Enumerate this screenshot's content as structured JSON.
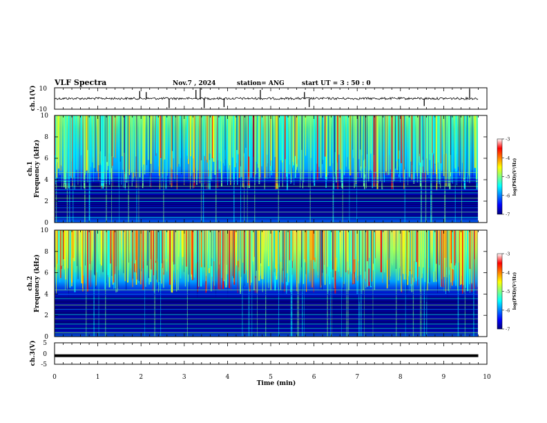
{
  "header": {
    "title": "VLF Spectra",
    "date": "Nov.7  , 2024",
    "station": "station= ANG",
    "start": "start  UT  =   3  : 50 : 0"
  },
  "chart_data": [
    {
      "type": "line",
      "name": "ch1-waveform",
      "ylabel": "ch.1(V)",
      "ylim": [
        -10,
        10
      ],
      "yticks": [
        "10",
        "-10"
      ],
      "baseline_value": 0,
      "spikes": [
        {
          "x": 1.97,
          "y": 7
        },
        {
          "x": 2.12,
          "y": 6
        },
        {
          "x": 2.65,
          "y": -9
        },
        {
          "x": 3.27,
          "y": 8
        },
        {
          "x": 3.37,
          "y": 10
        },
        {
          "x": 3.46,
          "y": -9
        },
        {
          "x": 3.92,
          "y": -8
        },
        {
          "x": 4.76,
          "y": 8
        },
        {
          "x": 5.78,
          "y": 6
        },
        {
          "x": 5.89,
          "y": -8
        },
        {
          "x": 8.55,
          "y": -7
        },
        {
          "x": 9.6,
          "y": 9
        }
      ]
    },
    {
      "type": "heatmap",
      "name": "ch1-spectrogram",
      "ylabel": "ch.1\nFrequency (kHz)",
      "ylim": [
        0,
        10
      ],
      "yticks": [
        "0",
        "2",
        "4",
        "6",
        "8",
        "10"
      ],
      "colorbar": {
        "label": "log(PSD)(V²/Hz)",
        "ticks": [
          "-3",
          "-4",
          "-5",
          "-6",
          "-7"
        ],
        "range": [
          -7,
          -3
        ]
      }
    },
    {
      "type": "heatmap",
      "name": "ch2-spectrogram",
      "ylabel": "ch.2\nFrequency (kHz)",
      "ylim": [
        0,
        10
      ],
      "yticks": [
        "0",
        "2",
        "4",
        "6",
        "8",
        "10"
      ],
      "colorbar": {
        "label": "log(PSD)(V²/Hz)",
        "ticks": [
          "-3",
          "-4",
          "-5",
          "-6",
          "-7"
        ],
        "range": [
          -7,
          -3
        ]
      }
    },
    {
      "type": "line",
      "name": "ch3-waveform",
      "ylabel": "ch.3(V)",
      "ylim": [
        -5,
        5
      ],
      "yticks": [
        "5",
        "0",
        "-5"
      ],
      "baseline_value": -1
    }
  ],
  "xaxis": {
    "label": "Time  (min)",
    "xlim": [
      0,
      10
    ],
    "ticks": [
      "0",
      "1",
      "2",
      "3",
      "4",
      "5",
      "6",
      "7",
      "8",
      "9",
      "10"
    ],
    "data_end": 9.8
  },
  "colors": {
    "scale": [
      "#00007f",
      "#0000ff",
      "#0080ff",
      "#00ffff",
      "#80ff80",
      "#ffff00",
      "#ff8000",
      "#ff0000",
      "#800000"
    ],
    "axis": "#000000",
    "trace": "#000000"
  }
}
